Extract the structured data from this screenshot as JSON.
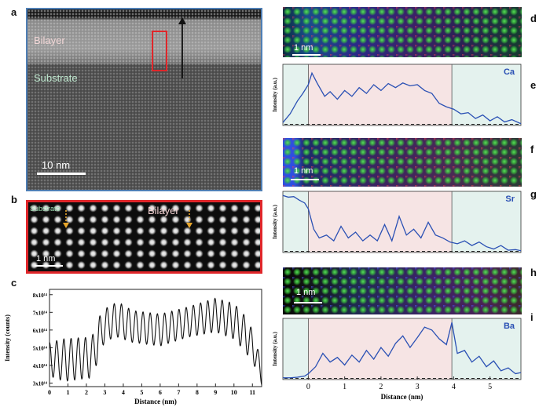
{
  "panels": {
    "a": {
      "letter": "a",
      "region_bilayer": "Bilayer",
      "region_substrate": "Substrate",
      "scalebar": "10 nm"
    },
    "b": {
      "letter": "b",
      "label_substrate": "Substrate",
      "label_bilayer": "Bilayer",
      "scalebar": "1 nm"
    },
    "c": {
      "letter": "c"
    },
    "d": {
      "letter": "d",
      "scalebar": "1 nm"
    },
    "e": {
      "letter": "e"
    },
    "f": {
      "letter": "f",
      "scalebar": "1 nm"
    },
    "g": {
      "letter": "g"
    },
    "h": {
      "letter": "h",
      "scalebar": "1 nm"
    },
    "i": {
      "letter": "i"
    }
  },
  "colors": {
    "a_border": "#4f7fb5",
    "b_border": "#e0262a",
    "profile_line": "#2a50b4",
    "bilayer_shade": "#f6e4e4",
    "substrate_shade": "#e4f2ee"
  },
  "chart_data": [
    {
      "id": "c",
      "type": "line",
      "xlabel": "Distance (nm)",
      "ylabel": "Intensity (counts)",
      "xlim": [
        0,
        11.5
      ],
      "ylim": [
        2.8,
        8.3
      ],
      "x_ticks": [
        0,
        1,
        2,
        3,
        4,
        5,
        6,
        7,
        8,
        9,
        10,
        11
      ],
      "y_ticks": [
        3,
        4,
        5,
        6,
        7,
        8
      ],
      "y_tick_labels": [
        "3x10¹⁴",
        "4x10¹⁴",
        "5x10¹⁴",
        "6x10¹⁴",
        "7x10¹⁴",
        "8x10¹⁴"
      ],
      "envelope": {
        "x": [
          0,
          0.8,
          2.3,
          2.6,
          3.0,
          3.7,
          4.5,
          6.0,
          7.5,
          9.0,
          10.0,
          10.6,
          11.1,
          11.5
        ],
        "upper": [
          5.3,
          5.5,
          5.6,
          6.6,
          7.2,
          7.6,
          7.1,
          6.9,
          7.3,
          7.8,
          7.5,
          6.8,
          5.8,
          4.0
        ],
        "lower": [
          3.4,
          3.1,
          3.3,
          4.2,
          5.4,
          5.6,
          5.3,
          5.1,
          5.6,
          5.9,
          5.5,
          4.8,
          4.0,
          2.9
        ]
      },
      "period_nm": 0.39
    },
    {
      "id": "e",
      "type": "line",
      "element": "Ca",
      "xlabel": "",
      "ylabel": "Intensity (a.u.)",
      "xlim": [
        -0.7,
        5.85
      ],
      "ylim": [
        0,
        1.05
      ],
      "interface_x": [
        0,
        3.95
      ],
      "x": [
        -0.7,
        -0.5,
        -0.3,
        -0.15,
        0,
        0.1,
        0.25,
        0.45,
        0.6,
        0.8,
        1.0,
        1.2,
        1.4,
        1.6,
        1.8,
        2.0,
        2.2,
        2.4,
        2.6,
        2.8,
        3.0,
        3.2,
        3.4,
        3.6,
        3.8,
        4.0,
        4.2,
        4.4,
        4.6,
        4.8,
        5.0,
        5.2,
        5.4,
        5.6,
        5.85
      ],
      "y": [
        0.05,
        0.2,
        0.42,
        0.55,
        0.7,
        0.9,
        0.72,
        0.5,
        0.58,
        0.45,
        0.6,
        0.5,
        0.65,
        0.55,
        0.7,
        0.6,
        0.72,
        0.65,
        0.73,
        0.68,
        0.7,
        0.6,
        0.55,
        0.38,
        0.32,
        0.28,
        0.2,
        0.22,
        0.12,
        0.18,
        0.08,
        0.15,
        0.06,
        0.1,
        0.03
      ]
    },
    {
      "id": "g",
      "type": "line",
      "element": "Sr",
      "xlabel": "",
      "ylabel": "Intensity (a.u.)",
      "xlim": [
        -0.7,
        5.85
      ],
      "ylim": [
        0,
        1.05
      ],
      "interface_x": [
        0,
        3.95
      ],
      "x": [
        -0.7,
        -0.55,
        -0.4,
        -0.25,
        -0.1,
        0,
        0.15,
        0.3,
        0.5,
        0.7,
        0.9,
        1.1,
        1.3,
        1.5,
        1.7,
        1.9,
        2.1,
        2.3,
        2.5,
        2.7,
        2.9,
        3.1,
        3.3,
        3.5,
        3.7,
        3.9,
        4.1,
        4.3,
        4.5,
        4.7,
        4.9,
        5.1,
        5.3,
        5.5,
        5.7,
        5.85
      ],
      "y": [
        0.98,
        0.95,
        0.96,
        0.9,
        0.85,
        0.75,
        0.4,
        0.25,
        0.3,
        0.2,
        0.45,
        0.25,
        0.35,
        0.2,
        0.3,
        0.2,
        0.48,
        0.2,
        0.62,
        0.3,
        0.4,
        0.25,
        0.52,
        0.3,
        0.25,
        0.18,
        0.15,
        0.2,
        0.12,
        0.18,
        0.1,
        0.06,
        0.12,
        0.04,
        0.05,
        0.03
      ]
    },
    {
      "id": "i",
      "type": "line",
      "element": "Ba",
      "xlabel": "Distance (nm)",
      "ylabel": "Intensity (a.u.)",
      "xlim": [
        -0.7,
        5.85
      ],
      "ylim": [
        0,
        1.05
      ],
      "x_ticks": [
        0,
        1,
        2,
        3,
        4,
        5
      ],
      "interface_x": [
        0,
        3.95
      ],
      "x": [
        -0.7,
        -0.5,
        -0.3,
        -0.1,
        0,
        0.2,
        0.4,
        0.6,
        0.8,
        1.0,
        1.2,
        1.4,
        1.6,
        1.8,
        2.0,
        2.2,
        2.4,
        2.6,
        2.8,
        3.0,
        3.2,
        3.4,
        3.6,
        3.8,
        3.95,
        4.1,
        4.3,
        4.5,
        4.7,
        4.9,
        5.1,
        5.3,
        5.5,
        5.7,
        5.85
      ],
      "y": [
        0.03,
        0.03,
        0.04,
        0.06,
        0.1,
        0.22,
        0.45,
        0.3,
        0.38,
        0.25,
        0.42,
        0.3,
        0.5,
        0.35,
        0.55,
        0.4,
        0.62,
        0.75,
        0.55,
        0.72,
        0.9,
        0.85,
        0.7,
        0.6,
        0.98,
        0.45,
        0.5,
        0.3,
        0.4,
        0.22,
        0.32,
        0.15,
        0.2,
        0.1,
        0.12
      ]
    }
  ]
}
